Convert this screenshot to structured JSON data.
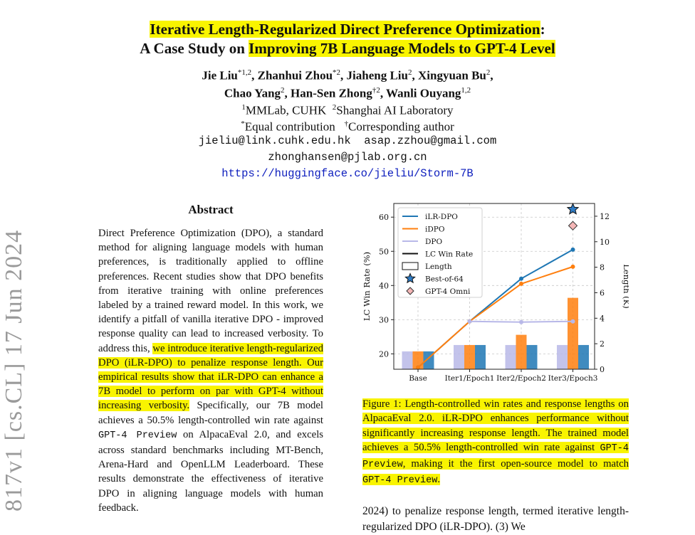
{
  "paper": {
    "title_part1": "Iterative Length-Regularized Direct Preference Optimization",
    "title_colon": ":",
    "title_part2_prefix": "A Case Study on ",
    "title_part2_highlight": "Improving 7B Language Models to GPT-4 Level",
    "authors": [
      {
        "name": "Jie Liu",
        "sup": "*1,2",
        "sep": ", "
      },
      {
        "name": "Zhanhui Zhou",
        "sup": "*2",
        "sep": ", "
      },
      {
        "name": "Jiaheng Liu",
        "sup": "2",
        "sep": ", "
      },
      {
        "name": "Xingyuan Bu",
        "sup": "2",
        "sep": ","
      },
      {
        "name": "Chao Yang",
        "sup": "2",
        "sep": ", "
      },
      {
        "name": "Han-Sen Zhong",
        "sup": "†2",
        "sep": ", "
      },
      {
        "name": "Wanli Ouyang",
        "sup": "1,2",
        "sep": ""
      }
    ],
    "affiliations": [
      {
        "sup": "1",
        "text": "MMLab, CUHK"
      },
      {
        "sup": "2",
        "text": "Shanghai AI Laboratory"
      }
    ],
    "notes": [
      {
        "sup": "*",
        "text": "Equal contribution"
      },
      {
        "sup": "†",
        "text": "Corresponding author"
      }
    ],
    "emails": [
      "jieliu@link.cuhk.edu.hk",
      "asap.zzhou@gmail.com",
      "zhonghansen@pjlab.org.cn"
    ],
    "url": "https://huggingface.co/jieliu/Storm-7B",
    "arxiv_stamp": "817v1  [cs.CL]  17 Jun 2024",
    "abstract_heading": "Abstract",
    "abstract": {
      "p1": "Direct Preference Optimization (DPO), a standard method for aligning language models with human preferences, is traditionally applied to offline preferences. Recent studies show that DPO benefits from iterative training with online preferences labeled by a trained reward model. In this work, we identify a pitfall of vanilla iterative DPO - improved response quality can lead to increased verbosity. To address this, ",
      "highlight": "we introduce iterative length-regularized DPO (iLR-DPO) to penalize response length. Our empirical results show that iLR-DPO can enhance a 7B model to perform on par with GPT-4 without increasing verbosity.",
      "p2": " Specifically, our 7B model achieves a ",
      "value": "50.5%",
      "p3": " length-controlled win rate against ",
      "model": "GPT-4 Preview",
      "p4": " on AlpacaEval 2.0, and excels across standard benchmarks including MT-Bench, Arena-Hard and OpenLLM Leaderboard. These results demonstrate the effectiveness of iterative DPO in aligning language models with human feedback."
    },
    "caption": {
      "a": "Figure 1:  Length-controlled win rates and response lengths on AlpacaEval 2.0. iLR-DPO enhances performance without significantly increasing response length. The trained model achieves a ",
      "value": "50.5%",
      "b": " length-controlled win rate against ",
      "model1": "GPT-4 Preview",
      "c": ", making it the first open-source model to match ",
      "model2": "GPT-4 Preview",
      "d": "."
    },
    "body_start": "2024) to penalize response length, termed iterative length-regularized DPO (iLR-DPO). (3) We"
  },
  "chart_data": {
    "type": "line",
    "categories": [
      "Base",
      "Iter1/Epoch1",
      "Iter2/Epoch2",
      "Iter3/Epoch3"
    ],
    "ylabel": "LC Win Rate (%)",
    "y2label": "Length (K)",
    "ylim": [
      15.5,
      64
    ],
    "y2lim": [
      0,
      13
    ],
    "yticks": [
      20,
      30,
      40,
      50,
      60
    ],
    "y2ticks": [
      0,
      2,
      4,
      6,
      8,
      10,
      12
    ],
    "grid": true,
    "legend_position": "top-left",
    "colors": {
      "ilr": "#1f77b4",
      "idpo": "#ff7f0e",
      "dpo": "#b8b8e8"
    },
    "legend": [
      "iLR-DPO",
      "iDPO",
      "DPO",
      "LC Win Rate",
      "Length",
      "Best-of-64",
      "GPT-4 Omni"
    ],
    "series": [
      {
        "name": "iLR-DPO",
        "lc_win_rate": [
          16,
          29.5,
          42,
          50.5
        ],
        "length_k": [
          1.4,
          1.9,
          1.9,
          1.9
        ]
      },
      {
        "name": "iDPO",
        "lc_win_rate": [
          16,
          29.5,
          40.5,
          45.5
        ],
        "length_k": [
          1.4,
          1.9,
          2.7,
          5.6
        ]
      },
      {
        "name": "DPO",
        "lc_win_rate": [
          null,
          29.5,
          29.3,
          29.5
        ],
        "length_k": [
          1.4,
          1.9,
          1.9,
          1.9
        ]
      }
    ],
    "markers": [
      {
        "name": "Best-of-64",
        "category": "Iter3/Epoch3",
        "value": 62.3
      },
      {
        "name": "GPT-4 Omni",
        "category": "Iter3/Epoch3",
        "value": 57.5
      }
    ]
  }
}
